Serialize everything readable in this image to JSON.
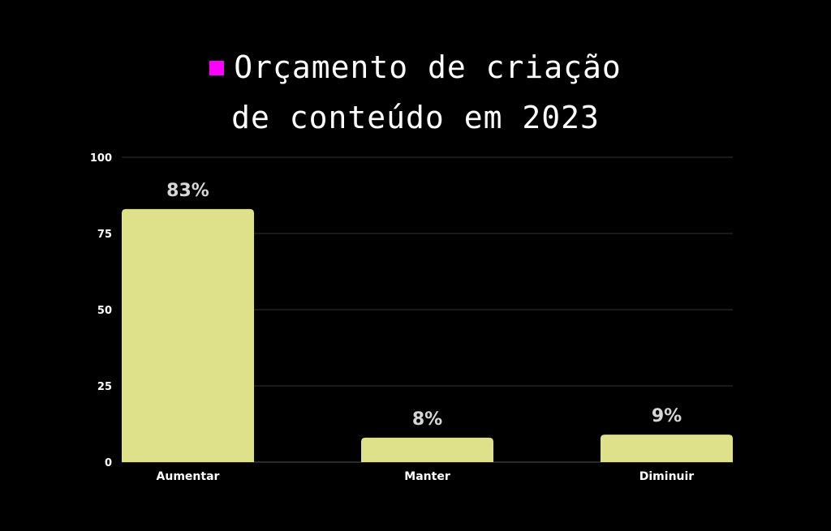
{
  "chart_data": {
    "type": "bar",
    "title_line1": "Orçamento de criação",
    "title_line2": "de conteúdo em 2023",
    "categories": [
      "Aumentar",
      "Manter",
      "Diminuir"
    ],
    "values": [
      83,
      8,
      9
    ],
    "data_labels": [
      "83%",
      "8%",
      "9%"
    ],
    "ylim": [
      0,
      100
    ],
    "yticks": [
      0,
      25,
      50,
      75,
      100
    ],
    "xlabel": "",
    "ylabel": "",
    "grid": true,
    "legend_placement": "top",
    "colors": {
      "bar": "#dfe08a",
      "legend_swatch": "#ff00ff",
      "grid": "#333333",
      "background": "#000000"
    }
  }
}
